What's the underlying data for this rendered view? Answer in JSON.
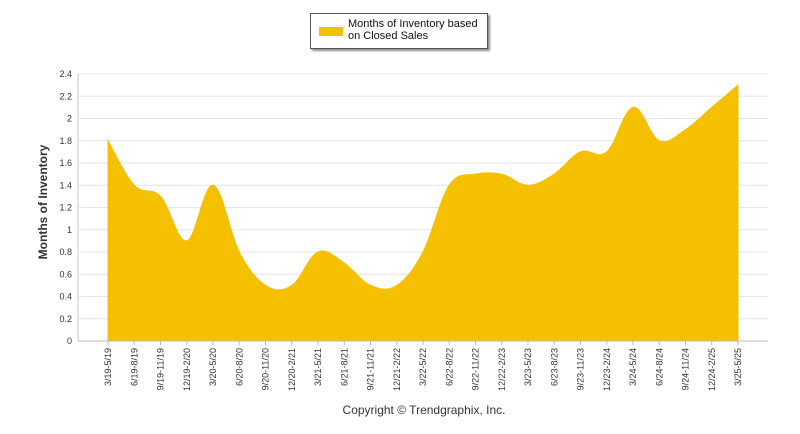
{
  "legend": {
    "label": "Months of Inventory based on Closed Sales",
    "color": "#F5C000"
  },
  "copyright": "Copyright © Trendgraphix, Inc.",
  "chart_data": {
    "type": "area",
    "title": "",
    "xlabel": "",
    "ylabel": "Months of Inventory",
    "ylim": [
      0,
      2.4
    ],
    "yticks": [
      0,
      0.2,
      0.4,
      0.6,
      0.8,
      1,
      1.2,
      1.4,
      1.6,
      1.8,
      2,
      2.2,
      2.4
    ],
    "grid": true,
    "legend_position": "top-center",
    "categories": [
      "3/19-5/19",
      "6/19-8/19",
      "9/19-11/19",
      "12/19-2/20",
      "3/20-5/20",
      "6/20-8/20",
      "9/20-11/20",
      "12/20-2/21",
      "3/21-5/21",
      "6/21-8/21",
      "9/21-11/21",
      "12/21-2/22",
      "3/22-5/22",
      "6/22-8/22",
      "9/22-11/22",
      "12/22-2/23",
      "3/23-5/23",
      "6/23-8/23",
      "9/23-11/23",
      "12/23-2/24",
      "3/24-5/24",
      "6/24-8/24",
      "9/24-11/24",
      "12/24-2/25",
      "3/25-5/25"
    ],
    "series": [
      {
        "name": "Months of Inventory based on Closed Sales",
        "color": "#F5C000",
        "values": [
          1.8,
          1.4,
          1.3,
          0.9,
          1.4,
          0.8,
          0.5,
          0.5,
          0.8,
          0.7,
          0.5,
          0.5,
          0.8,
          1.4,
          1.5,
          1.5,
          1.4,
          1.5,
          1.7,
          1.7,
          2.1,
          1.8,
          1.9,
          2.1,
          2.3
        ]
      }
    ]
  }
}
